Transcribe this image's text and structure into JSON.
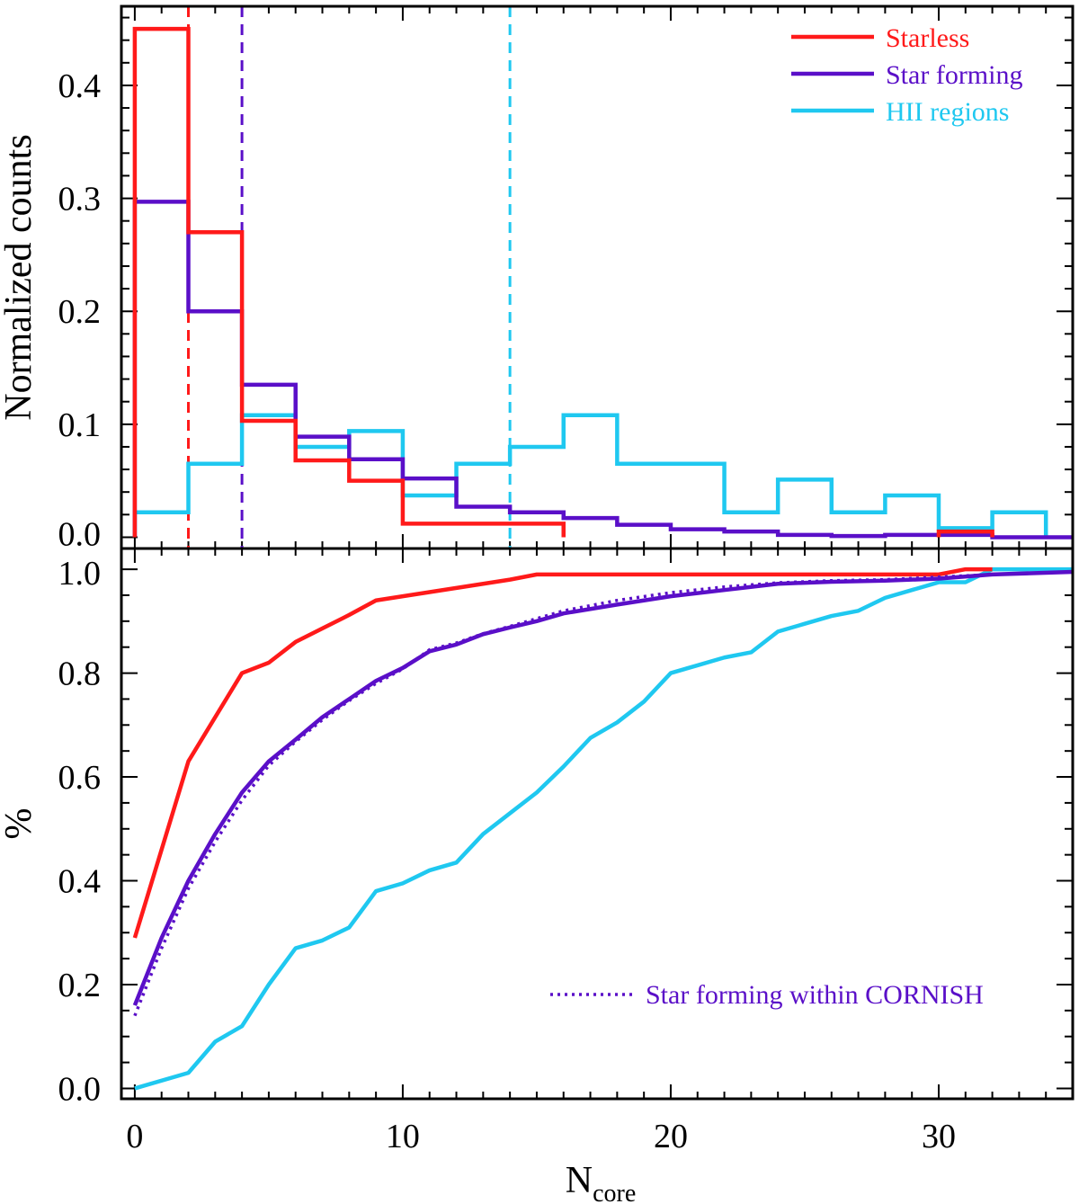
{
  "chart_data": [
    {
      "type": "histogram",
      "panel": "top",
      "ylabel": "Normalized counts",
      "xlim": [
        -0.5,
        35
      ],
      "ylim": [
        -0.01,
        0.47
      ],
      "yticks": [
        0.0,
        0.1,
        0.2,
        0.3,
        0.4
      ],
      "ytick_labels": [
        "0.0",
        "0.1",
        "0.2",
        "0.3",
        "0.4"
      ],
      "legend_position": "top-right",
      "series": [
        {
          "name": "Starless",
          "color": "#ff1a1a",
          "bin_edges": [
            0,
            2,
            4,
            6,
            8,
            10,
            12,
            14,
            16
          ],
          "values": [
            0.45,
            0.27,
            0.103,
            0.068,
            0.05,
            0.012,
            0.012,
            0.012
          ],
          "extra_bins": [
            {
              "from": 30,
              "to": 32,
              "value": 0.005
            }
          ],
          "median": 2
        },
        {
          "name": "Star forming",
          "color": "#5a0fc8",
          "bin_edges": [
            0,
            2,
            4,
            6,
            8,
            10,
            12,
            14,
            16,
            18,
            20,
            22,
            24,
            26,
            28,
            30,
            32,
            34,
            35
          ],
          "values": [
            0.297,
            0.2,
            0.135,
            0.089,
            0.069,
            0.052,
            0.027,
            0.022,
            0.017,
            0.011,
            0.007,
            0.005,
            0.002,
            0.001,
            0.002,
            0.002,
            0.0,
            0.0
          ],
          "median": 4
        },
        {
          "name": "HII regions",
          "color": "#1fc8f0",
          "bin_edges": [
            0,
            2,
            4,
            6,
            8,
            10,
            12,
            14,
            16,
            18,
            20,
            22,
            24,
            26,
            28,
            30,
            32,
            34
          ],
          "values": [
            0.022,
            0.065,
            0.108,
            0.08,
            0.094,
            0.037,
            0.065,
            0.08,
            0.108,
            0.065,
            0.065,
            0.022,
            0.051,
            0.022,
            0.037,
            0.008,
            0.022
          ],
          "median": 14
        }
      ]
    },
    {
      "type": "line",
      "panel": "bottom",
      "xlabel": "N",
      "xlabel_sub": "core",
      "ylabel": "%",
      "xlim": [
        -0.5,
        35
      ],
      "ylim": [
        -0.02,
        1.04
      ],
      "xticks": [
        0,
        10,
        20,
        30
      ],
      "xtick_labels": [
        "0",
        "10",
        "20",
        "30"
      ],
      "yticks": [
        0.0,
        0.2,
        0.4,
        0.6,
        0.8,
        1.0
      ],
      "ytick_labels": [
        "0.0",
        "0.2",
        "0.4",
        "0.6",
        "0.8",
        "1.0"
      ],
      "legend_position": "bottom-right",
      "series": [
        {
          "name": "Starless",
          "color": "#ff1a1a",
          "style": "solid",
          "x": [
            0,
            2,
            4,
            5,
            6,
            7,
            8,
            9,
            10,
            11,
            12,
            13,
            14,
            15,
            16,
            20,
            25,
            30,
            31,
            32
          ],
          "y": [
            0.29,
            0.63,
            0.8,
            0.82,
            0.86,
            0.886,
            0.912,
            0.94,
            0.948,
            0.956,
            0.964,
            0.972,
            0.98,
            0.99,
            0.99,
            0.99,
            0.99,
            0.99,
            1.0,
            1.0
          ]
        },
        {
          "name": "Star forming",
          "color": "#5a0fc8",
          "style": "solid",
          "x": [
            0,
            1,
            2,
            3,
            4,
            5,
            6,
            7,
            8,
            9,
            10,
            11,
            12,
            13,
            14,
            15,
            16,
            18,
            20,
            22,
            24,
            26,
            28,
            30,
            32,
            35
          ],
          "y": [
            0.16,
            0.29,
            0.4,
            0.49,
            0.57,
            0.63,
            0.672,
            0.715,
            0.75,
            0.785,
            0.81,
            0.842,
            0.855,
            0.875,
            0.888,
            0.9,
            0.915,
            0.932,
            0.948,
            0.96,
            0.972,
            0.976,
            0.978,
            0.982,
            0.99,
            0.995
          ]
        },
        {
          "name": "Star forming within CORNISH",
          "color": "#5a0fc8",
          "style": "dotted",
          "x": [
            0,
            1,
            2,
            3,
            4,
            5,
            6,
            7,
            8,
            9,
            10,
            11,
            12,
            13,
            14,
            15,
            16,
            18,
            20,
            22,
            24,
            26,
            28,
            30,
            32,
            35
          ],
          "y": [
            0.14,
            0.27,
            0.385,
            0.475,
            0.555,
            0.622,
            0.668,
            0.71,
            0.747,
            0.78,
            0.808,
            0.845,
            0.858,
            0.876,
            0.89,
            0.905,
            0.92,
            0.94,
            0.955,
            0.966,
            0.974,
            0.978,
            0.98,
            0.985,
            0.99,
            0.995
          ]
        },
        {
          "name": "HII regions",
          "color": "#1fc8f0",
          "style": "solid",
          "x": [
            0,
            2,
            3,
            4,
            5,
            6,
            7,
            8,
            9,
            10,
            11,
            12,
            13,
            14,
            15,
            16,
            17,
            18,
            19,
            20,
            21,
            22,
            23,
            24,
            25,
            26,
            27,
            28,
            29,
            30,
            31,
            32,
            33,
            35
          ],
          "y": [
            0.0,
            0.03,
            0.09,
            0.12,
            0.2,
            0.27,
            0.285,
            0.31,
            0.38,
            0.395,
            0.42,
            0.435,
            0.49,
            0.53,
            0.57,
            0.62,
            0.675,
            0.705,
            0.745,
            0.8,
            0.815,
            0.83,
            0.84,
            0.88,
            0.895,
            0.91,
            0.92,
            0.945,
            0.96,
            0.975,
            0.975,
            1.0,
            1.0,
            1.0
          ]
        }
      ]
    }
  ]
}
